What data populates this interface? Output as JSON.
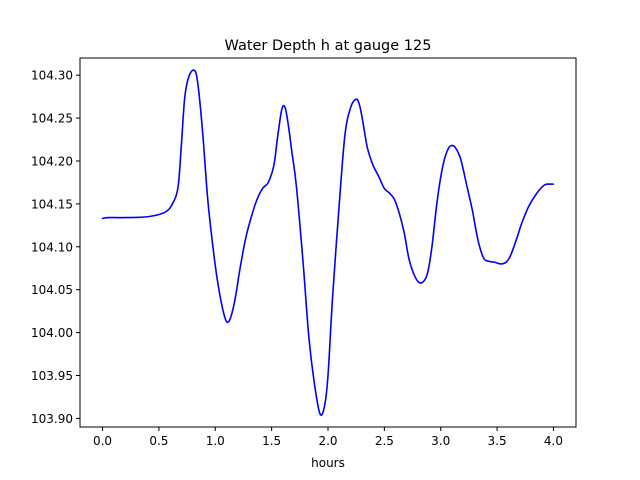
{
  "chart_data": {
    "type": "line",
    "title": "Water Depth h at gauge 125",
    "xlabel": "hours",
    "ylabel": "",
    "xlim": [
      -0.2,
      4.2
    ],
    "ylim": [
      103.89,
      104.32
    ],
    "xticks": [
      0.0,
      0.5,
      1.0,
      1.5,
      2.0,
      2.5,
      3.0,
      3.5,
      4.0
    ],
    "xtick_labels": [
      "0.0",
      "0.5",
      "1.0",
      "1.5",
      "2.0",
      "2.5",
      "3.0",
      "3.5",
      "4.0"
    ],
    "yticks": [
      103.9,
      103.95,
      104.0,
      104.05,
      104.1,
      104.15,
      104.2,
      104.25,
      104.3
    ],
    "ytick_labels": [
      "103.90",
      "103.95",
      "104.00",
      "104.05",
      "104.10",
      "104.15",
      "104.20",
      "104.25",
      "104.30"
    ],
    "grid": false,
    "series": [
      {
        "color": "#0000ff",
        "x": [
          0.0,
          0.05,
          0.2,
          0.4,
          0.55,
          0.62,
          0.67,
          0.7,
          0.73,
          0.77,
          0.82,
          0.85,
          0.89,
          0.93,
          0.97,
          1.02,
          1.08,
          1.12,
          1.17,
          1.22,
          1.27,
          1.32,
          1.37,
          1.42,
          1.47,
          1.52,
          1.55,
          1.59,
          1.62,
          1.65,
          1.68,
          1.72,
          1.78,
          1.83,
          1.88,
          1.93,
          1.97,
          2.0,
          2.04,
          2.1,
          2.15,
          2.2,
          2.25,
          2.28,
          2.31,
          2.35,
          2.4,
          2.45,
          2.5,
          2.55,
          2.6,
          2.67,
          2.72,
          2.78,
          2.83,
          2.88,
          2.92,
          2.97,
          3.02,
          3.07,
          3.12,
          3.17,
          3.2,
          3.23,
          3.28,
          3.33,
          3.38,
          3.43,
          3.48,
          3.53,
          3.58,
          3.62,
          3.67,
          3.72,
          3.78,
          3.85,
          3.92,
          3.97,
          4.0
        ],
        "values": [
          104.133,
          104.134,
          104.134,
          104.135,
          104.14,
          104.15,
          104.17,
          104.22,
          104.275,
          104.3,
          104.305,
          104.285,
          104.23,
          104.16,
          104.11,
          104.06,
          104.02,
          104.013,
          104.035,
          104.075,
          104.11,
          104.135,
          104.155,
          104.168,
          104.175,
          104.195,
          104.225,
          104.26,
          104.262,
          104.24,
          104.21,
          104.17,
          104.08,
          103.995,
          103.94,
          103.905,
          103.915,
          103.95,
          104.04,
          104.15,
          104.23,
          104.262,
          104.272,
          104.265,
          104.245,
          104.215,
          104.195,
          104.182,
          104.168,
          104.162,
          104.152,
          104.12,
          104.085,
          104.063,
          104.058,
          104.068,
          104.098,
          104.155,
          104.195,
          104.215,
          104.217,
          104.205,
          104.19,
          104.172,
          104.143,
          104.108,
          104.087,
          104.083,
          104.082,
          104.08,
          104.082,
          104.09,
          104.108,
          104.128,
          104.147,
          104.162,
          104.172,
          104.173,
          104.173
        ]
      }
    ]
  }
}
